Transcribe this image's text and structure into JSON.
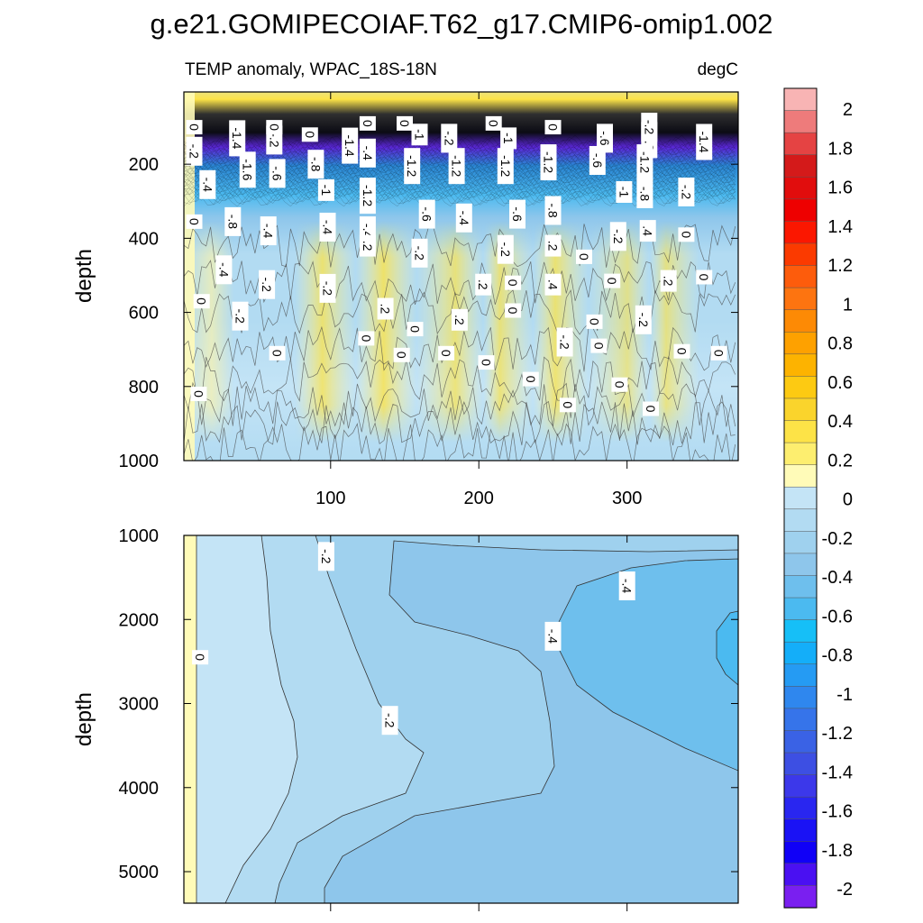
{
  "chart_data": [
    {
      "type": "heatmap",
      "panel": "upper",
      "title": "g.e21.GOMIPECOIAF.T62_g17.CMIP6-omip1.002",
      "left_string": "TEMP anomaly, WPAC_18S-18N",
      "right_string": "degC",
      "xlabel": "",
      "ylabel": "depth",
      "xlim": [
        1,
        375
      ],
      "ylim": [
        1000,
        5
      ],
      "x_ticks": [
        100,
        200,
        300
      ],
      "y_ticks": [
        200,
        400,
        600,
        800,
        1000
      ],
      "contour_labels": [
        {
          "x": 8,
          "depth": 100,
          "text": "0"
        },
        {
          "x": 37,
          "depth": 130,
          "text": "-1.4"
        },
        {
          "x": 62,
          "depth": 135,
          "text": "-.2"
        },
        {
          "x": 62,
          "depth": 100,
          "text": "0"
        },
        {
          "x": 86,
          "depth": 120,
          "text": "0"
        },
        {
          "x": 113,
          "depth": 150,
          "text": "-1.4"
        },
        {
          "x": 125,
          "depth": 170,
          "text": "-.4"
        },
        {
          "x": 125,
          "depth": 90,
          "text": "0"
        },
        {
          "x": 150,
          "depth": 90,
          "text": "0"
        },
        {
          "x": 160,
          "depth": 120,
          "text": "-1"
        },
        {
          "x": 180,
          "depth": 130,
          "text": "-.2"
        },
        {
          "x": 220,
          "depth": 130,
          "text": "-1"
        },
        {
          "x": 210,
          "depth": 90,
          "text": "0"
        },
        {
          "x": 250,
          "depth": 100,
          "text": "0"
        },
        {
          "x": 285,
          "depth": 130,
          "text": "-.6"
        },
        {
          "x": 315,
          "depth": 135,
          "text": "-1.2"
        },
        {
          "x": 315,
          "depth": 100,
          "text": "-.2"
        },
        {
          "x": 352,
          "depth": 140,
          "text": "-1.4"
        },
        {
          "x": 8,
          "depth": 165,
          "text": "-.2"
        },
        {
          "x": 17,
          "depth": 255,
          "text": "-.4"
        },
        {
          "x": 44,
          "depth": 215,
          "text": "-1.6"
        },
        {
          "x": 64,
          "depth": 225,
          "text": "-.6"
        },
        {
          "x": 90,
          "depth": 200,
          "text": "-.8"
        },
        {
          "x": 97,
          "depth": 270,
          "text": "-1"
        },
        {
          "x": 125,
          "depth": 285,
          "text": "-1.2"
        },
        {
          "x": 155,
          "depth": 205,
          "text": "-1.2"
        },
        {
          "x": 185,
          "depth": 205,
          "text": "-1.2"
        },
        {
          "x": 218,
          "depth": 205,
          "text": "-1.2"
        },
        {
          "x": 247,
          "depth": 195,
          "text": "-1.2"
        },
        {
          "x": 280,
          "depth": 190,
          "text": "-.6"
        },
        {
          "x": 298,
          "depth": 275,
          "text": "-1"
        },
        {
          "x": 312,
          "depth": 195,
          "text": "-1.2"
        },
        {
          "x": 312,
          "depth": 280,
          "text": "-.8"
        },
        {
          "x": 340,
          "depth": 275,
          "text": "-.2"
        },
        {
          "x": 8,
          "depth": 355,
          "text": "0"
        },
        {
          "x": 34,
          "depth": 355,
          "text": "-.8"
        },
        {
          "x": 58,
          "depth": 380,
          "text": "-.4"
        },
        {
          "x": 98,
          "depth": 370,
          "text": "-.4"
        },
        {
          "x": 125,
          "depth": 380,
          "text": "-.4"
        },
        {
          "x": 125,
          "depth": 420,
          "text": ".2"
        },
        {
          "x": 165,
          "depth": 335,
          "text": "-.6"
        },
        {
          "x": 190,
          "depth": 345,
          "text": "-.4"
        },
        {
          "x": 226,
          "depth": 335,
          "text": "-.6"
        },
        {
          "x": 250,
          "depth": 325,
          "text": "-.8"
        },
        {
          "x": 160,
          "depth": 440,
          "text": "-.2"
        },
        {
          "x": 218,
          "depth": 430,
          "text": "-.2"
        },
        {
          "x": 250,
          "depth": 420,
          "text": ".2"
        },
        {
          "x": 271,
          "depth": 450,
          "text": "0"
        },
        {
          "x": 294,
          "depth": 395,
          "text": "-.2"
        },
        {
          "x": 314,
          "depth": 380,
          "text": ".4"
        },
        {
          "x": 340,
          "depth": 390,
          "text": "0"
        },
        {
          "x": 28,
          "depth": 485,
          "text": "-.4"
        },
        {
          "x": 57,
          "depth": 525,
          "text": "-.2"
        },
        {
          "x": 98,
          "depth": 535,
          "text": "-.2"
        },
        {
          "x": 203,
          "depth": 525,
          "text": ".2"
        },
        {
          "x": 223,
          "depth": 520,
          "text": "0"
        },
        {
          "x": 250,
          "depth": 525,
          "text": ".4"
        },
        {
          "x": 290,
          "depth": 515,
          "text": "0"
        },
        {
          "x": 328,
          "depth": 515,
          "text": ".2"
        },
        {
          "x": 352,
          "depth": 505,
          "text": "0"
        },
        {
          "x": 13,
          "depth": 570,
          "text": "0"
        },
        {
          "x": 39,
          "depth": 610,
          "text": "-.2"
        },
        {
          "x": 137,
          "depth": 590,
          "text": ".2"
        },
        {
          "x": 187,
          "depth": 620,
          "text": ".2"
        },
        {
          "x": 223,
          "depth": 595,
          "text": "0"
        },
        {
          "x": 157,
          "depth": 645,
          "text": "0"
        },
        {
          "x": 278,
          "depth": 625,
          "text": "0"
        },
        {
          "x": 311,
          "depth": 620,
          "text": "-.2"
        },
        {
          "x": 124,
          "depth": 670,
          "text": "0"
        },
        {
          "x": 64,
          "depth": 710,
          "text": "0"
        },
        {
          "x": 148,
          "depth": 715,
          "text": "0"
        },
        {
          "x": 178,
          "depth": 710,
          "text": "0"
        },
        {
          "x": 205,
          "depth": 735,
          "text": "0"
        },
        {
          "x": 258,
          "depth": 680,
          "text": "-.2"
        },
        {
          "x": 281,
          "depth": 690,
          "text": "0"
        },
        {
          "x": 337,
          "depth": 705,
          "text": "0"
        },
        {
          "x": 362,
          "depth": 710,
          "text": "0"
        },
        {
          "x": 235,
          "depth": 780,
          "text": "0"
        },
        {
          "x": 295,
          "depth": 795,
          "text": "0"
        },
        {
          "x": 11,
          "depth": 820,
          "text": "0"
        },
        {
          "x": 260,
          "depth": 850,
          "text": "0"
        },
        {
          "x": 316,
          "depth": 860,
          "text": "0"
        }
      ]
    },
    {
      "type": "heatmap",
      "panel": "lower",
      "xlabel": "",
      "ylabel": "depth",
      "xlim": [
        1,
        375
      ],
      "ylim": [
        1000,
        5375
      ],
      "x_ticks": [
        100,
        200,
        300
      ],
      "y_ticks": [
        1000,
        2000,
        3000,
        4000,
        5000
      ],
      "contour_labels": [
        {
          "x": 12,
          "depth": 2450,
          "text": "0"
        },
        {
          "x": 97,
          "depth": 1250,
          "text": "-.2"
        },
        {
          "x": 140,
          "depth": 3200,
          "text": "-.2"
        },
        {
          "x": 250,
          "depth": 2200,
          "text": "-.4"
        },
        {
          "x": 300,
          "depth": 1600,
          "text": "-.4"
        }
      ]
    }
  ],
  "colorbar": {
    "labels": [
      "2",
      "1.8",
      "1.6",
      "1.4",
      "1.2",
      "1",
      "0.8",
      "0.6",
      "0.4",
      "0.2",
      "0",
      "-0.2",
      "-0.4",
      "-0.6",
      "-0.8",
      "-1",
      "-1.2",
      "-1.4",
      "-1.6",
      "-1.8",
      "-2"
    ],
    "colors": [
      "#f8b4b4",
      "#ee7b7b",
      "#e54343",
      "#d41a1a",
      "#e10d0d",
      "#ee0000",
      "#fb1700",
      "#fb3a00",
      "#fd5c0c",
      "#fd7410",
      "#fd8a05",
      "#fea100",
      "#fdb300",
      "#fdca12",
      "#fad42c",
      "#fde347",
      "#fdee6f",
      "#fffbb8",
      "#c4e4f6",
      "#b2dbf2",
      "#9fd1ee",
      "#8ec6eb",
      "#6ebfed",
      "#4bbaf0",
      "#16bff7",
      "#14aef9",
      "#259bf3",
      "#2f87ee",
      "#3674ea",
      "#3a62e5",
      "#3d4fe3",
      "#3c38ea",
      "#2926f0",
      "#1a12f5",
      "#1000f7",
      "#4a10f2",
      "#7a1ff0"
    ]
  }
}
